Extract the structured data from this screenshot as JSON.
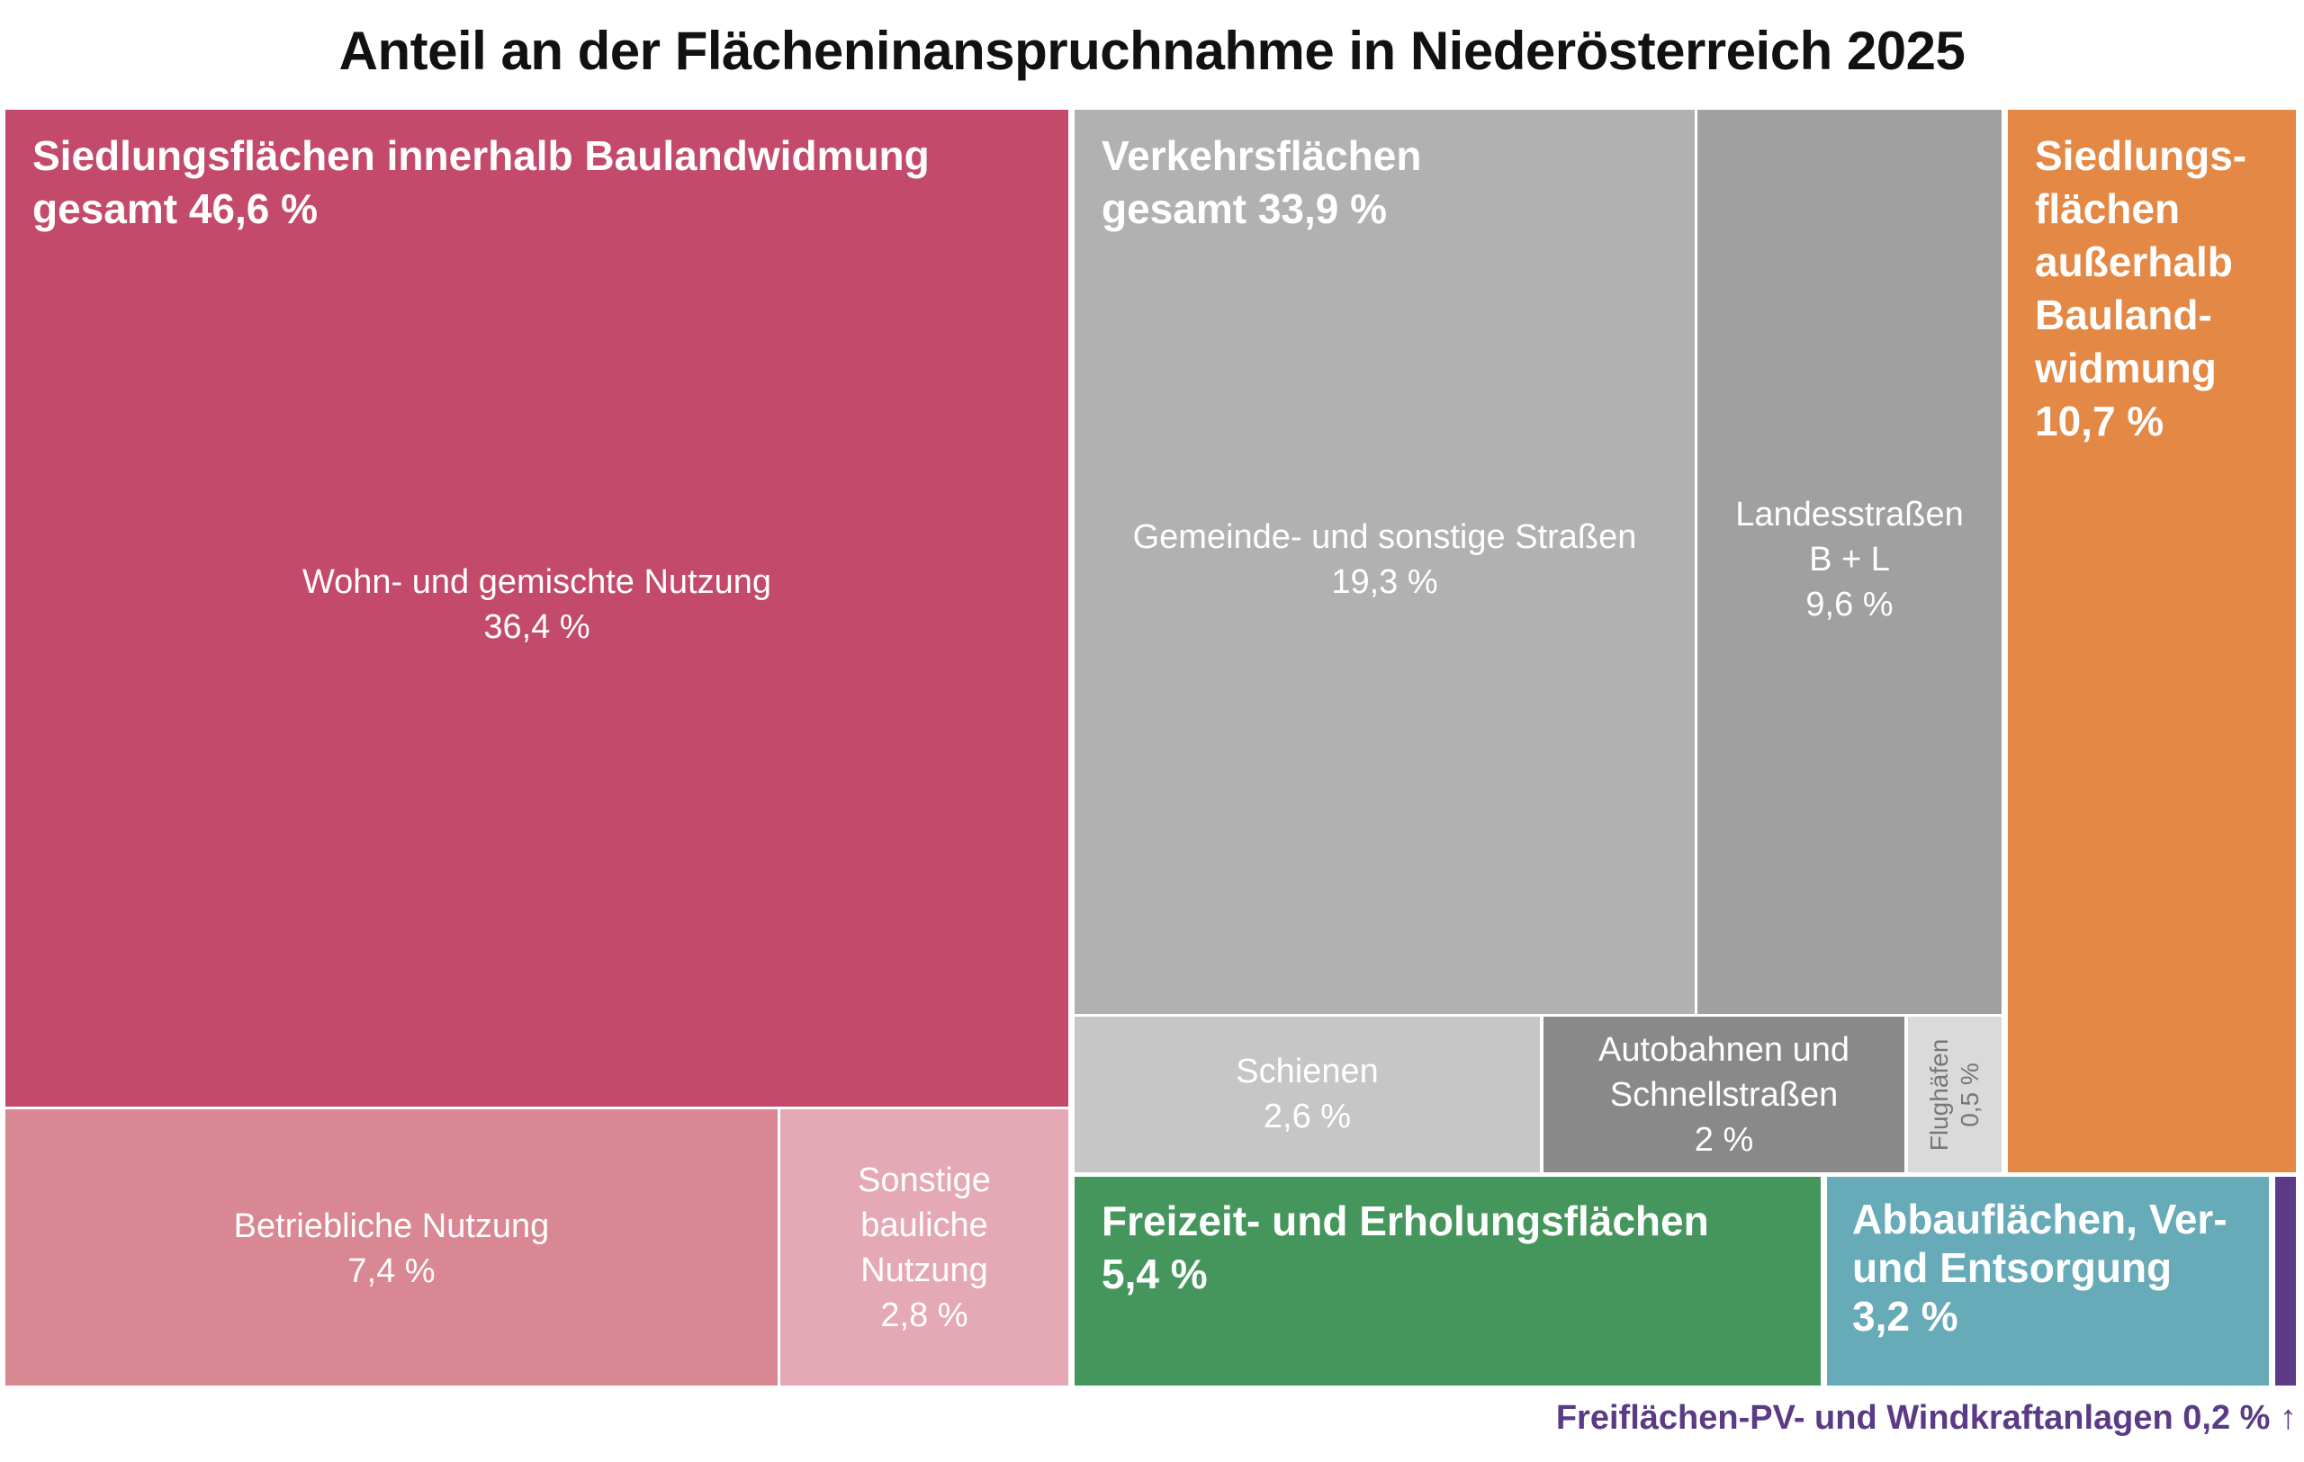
{
  "chart_data": {
    "type": "treemap",
    "title": "Anteil an der Flächeninanspruchnahme in Niederösterreich 2025",
    "unit": "%",
    "groups": [
      {
        "name": "Siedlungsflächen innerhalb Baulandwidmung",
        "total_label": "gesamt 46,6 %",
        "value": 46.6,
        "color": "#c44a6b",
        "children": [
          {
            "name": "Wohn- und gemischte Nutzung",
            "label": "36,4 %",
            "value": 36.4,
            "color": "#c44a6b"
          },
          {
            "name": "Betriebliche Nutzung",
            "label": "7,4 %",
            "value": 7.4,
            "color": "#da8794"
          },
          {
            "name": "Sonstige bauliche Nutzung",
            "label": "2,8 %",
            "value": 2.8,
            "color": "#e4a9b5"
          }
        ]
      },
      {
        "name": "Verkehrsflächen",
        "total_label": "gesamt 33,9 %",
        "value": 33.9,
        "color": "#b1b1b1",
        "children": [
          {
            "name": "Gemeinde- und sonstige Straßen",
            "label": "19,3 %",
            "value": 19.3,
            "color": "#b1b1b1"
          },
          {
            "name": "Landesstraßen B + L",
            "name_lines": [
              "Landesstraßen",
              "B + L"
            ],
            "label": "9,6 %",
            "value": 9.6,
            "color": "#a0a0a0"
          },
          {
            "name": "Schienen",
            "label": "2,6 %",
            "value": 2.6,
            "color": "#c5c6c5"
          },
          {
            "name": "Autobahnen und Schnellstraßen",
            "name_lines": [
              "Autobahnen und",
              "Schnellstraßen"
            ],
            "label": "2 %",
            "value": 2,
            "color": "#888988"
          },
          {
            "name": "Flughäfen",
            "label": "0,5 %",
            "value": 0.5,
            "color": "#dadada"
          }
        ]
      },
      {
        "name": "Siedlungsflächen außerhalb Baulandwidmung",
        "name_lines": [
          "Siedlungs-",
          "flächen",
          "außerhalb",
          "Bauland-",
          "widmung"
        ],
        "label": "10,7 %",
        "value": 10.7,
        "color": "#e38845"
      },
      {
        "name": "Freizeit- und Erholungsflächen",
        "label": "5,4 %",
        "value": 5.4,
        "color": "#45965c"
      },
      {
        "name": "Abbauflächen, Ver- und Entsorgung",
        "name_lines": [
          "Abbauflächen, Ver-",
          "und Entsorgung"
        ],
        "label": "3,2 %",
        "value": 3.2,
        "color": "#67aab8"
      },
      {
        "name": "Freiflächen-PV- und Windkraftanlagen",
        "label": "0,2 %",
        "value": 0.2,
        "color": "#5b3b85",
        "footnote": "Freiflächen-PV- und Windkraftanlagen 0,2 % ↑"
      }
    ]
  }
}
